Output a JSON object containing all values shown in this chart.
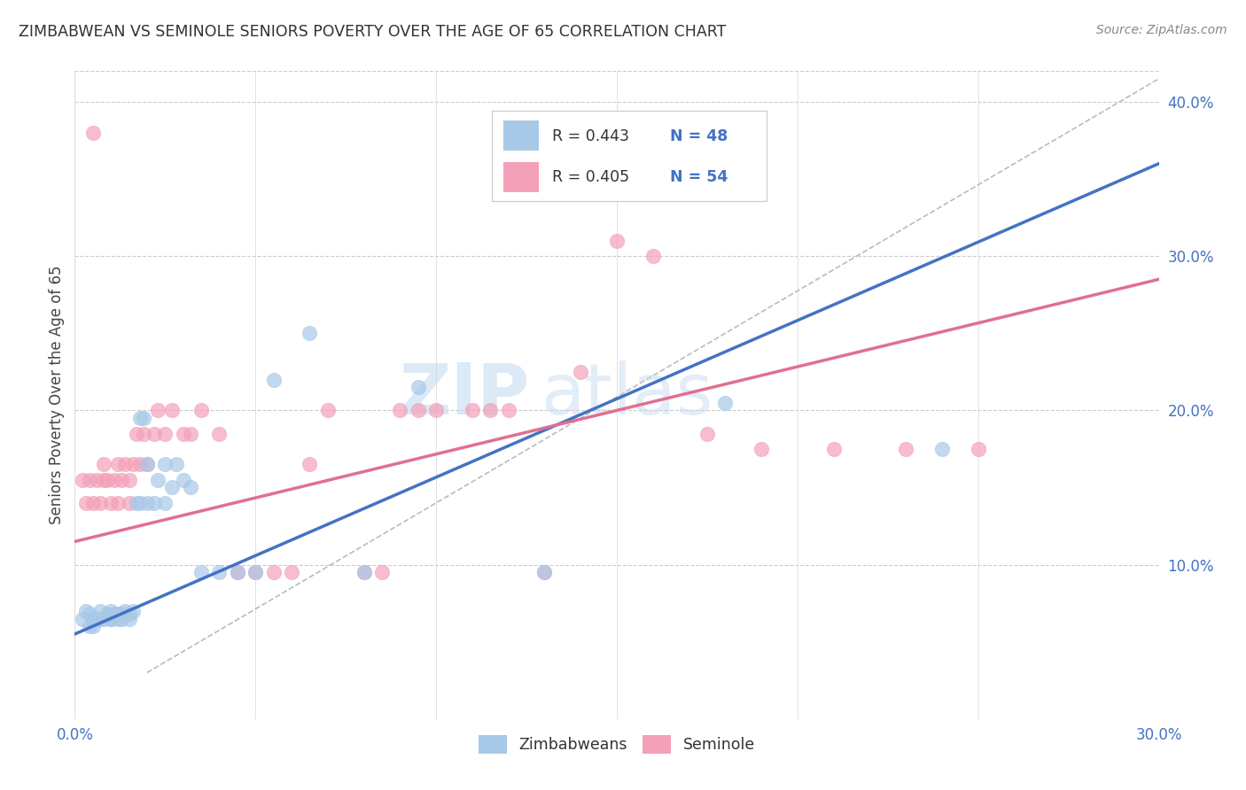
{
  "title": "ZIMBABWEAN VS SEMINOLE SENIORS POVERTY OVER THE AGE OF 65 CORRELATION CHART",
  "source": "Source: ZipAtlas.com",
  "ylabel": "Seniors Poverty Over the Age of 65",
  "xlabel": "",
  "xlim": [
    0.0,
    0.3
  ],
  "ylim": [
    0.0,
    0.42
  ],
  "x_ticks": [
    0.0,
    0.05,
    0.1,
    0.15,
    0.2,
    0.25,
    0.3
  ],
  "y_ticks_right": [
    0.0,
    0.1,
    0.2,
    0.3,
    0.4
  ],
  "y_tick_labels_right": [
    "",
    "10.0%",
    "20.0%",
    "30.0%",
    "40.0%"
  ],
  "color_blue": "#a8c8e8",
  "color_pink": "#f4a0b8",
  "color_blue_line": "#4472C4",
  "color_pink_line": "#e07090",
  "color_blue_text": "#4472C4",
  "watermark_zip": "ZIP",
  "watermark_atlas": "atlas",
  "blue_scatter_x": [
    0.002,
    0.003,
    0.004,
    0.004,
    0.005,
    0.005,
    0.006,
    0.007,
    0.007,
    0.008,
    0.009,
    0.01,
    0.01,
    0.01,
    0.011,
    0.012,
    0.012,
    0.013,
    0.013,
    0.014,
    0.015,
    0.015,
    0.016,
    0.017,
    0.018,
    0.018,
    0.019,
    0.02,
    0.02,
    0.022,
    0.023,
    0.025,
    0.025,
    0.027,
    0.028,
    0.03,
    0.032,
    0.035,
    0.04,
    0.045,
    0.05,
    0.055,
    0.065,
    0.08,
    0.095,
    0.13,
    0.18,
    0.24
  ],
  "blue_scatter_y": [
    0.065,
    0.07,
    0.06,
    0.068,
    0.06,
    0.065,
    0.065,
    0.065,
    0.07,
    0.065,
    0.068,
    0.065,
    0.065,
    0.07,
    0.068,
    0.065,
    0.068,
    0.065,
    0.068,
    0.07,
    0.065,
    0.068,
    0.07,
    0.14,
    0.14,
    0.195,
    0.195,
    0.14,
    0.165,
    0.14,
    0.155,
    0.14,
    0.165,
    0.15,
    0.165,
    0.155,
    0.15,
    0.095,
    0.095,
    0.095,
    0.095,
    0.22,
    0.25,
    0.095,
    0.215,
    0.095,
    0.205,
    0.175
  ],
  "pink_scatter_x": [
    0.002,
    0.003,
    0.004,
    0.005,
    0.006,
    0.007,
    0.008,
    0.008,
    0.009,
    0.01,
    0.011,
    0.012,
    0.012,
    0.013,
    0.014,
    0.015,
    0.015,
    0.016,
    0.017,
    0.018,
    0.019,
    0.02,
    0.022,
    0.023,
    0.025,
    0.027,
    0.03,
    0.032,
    0.035,
    0.04,
    0.045,
    0.05,
    0.055,
    0.06,
    0.065,
    0.07,
    0.08,
    0.085,
    0.09,
    0.095,
    0.1,
    0.11,
    0.115,
    0.12,
    0.13,
    0.14,
    0.15,
    0.16,
    0.175,
    0.19,
    0.21,
    0.23,
    0.25,
    0.005
  ],
  "pink_scatter_y": [
    0.155,
    0.14,
    0.155,
    0.14,
    0.155,
    0.14,
    0.155,
    0.165,
    0.155,
    0.14,
    0.155,
    0.14,
    0.165,
    0.155,
    0.165,
    0.155,
    0.14,
    0.165,
    0.185,
    0.165,
    0.185,
    0.165,
    0.185,
    0.2,
    0.185,
    0.2,
    0.185,
    0.185,
    0.2,
    0.185,
    0.095,
    0.095,
    0.095,
    0.095,
    0.165,
    0.2,
    0.095,
    0.095,
    0.2,
    0.2,
    0.2,
    0.2,
    0.2,
    0.2,
    0.095,
    0.225,
    0.31,
    0.3,
    0.185,
    0.175,
    0.175,
    0.175,
    0.175,
    0.38
  ],
  "blue_line_x": [
    0.0,
    0.3
  ],
  "blue_line_y": [
    0.055,
    0.36
  ],
  "pink_line_x": [
    0.0,
    0.3
  ],
  "pink_line_y": [
    0.115,
    0.285
  ],
  "dashed_line_x": [
    0.02,
    0.3
  ],
  "dashed_line_y": [
    0.03,
    0.415
  ]
}
